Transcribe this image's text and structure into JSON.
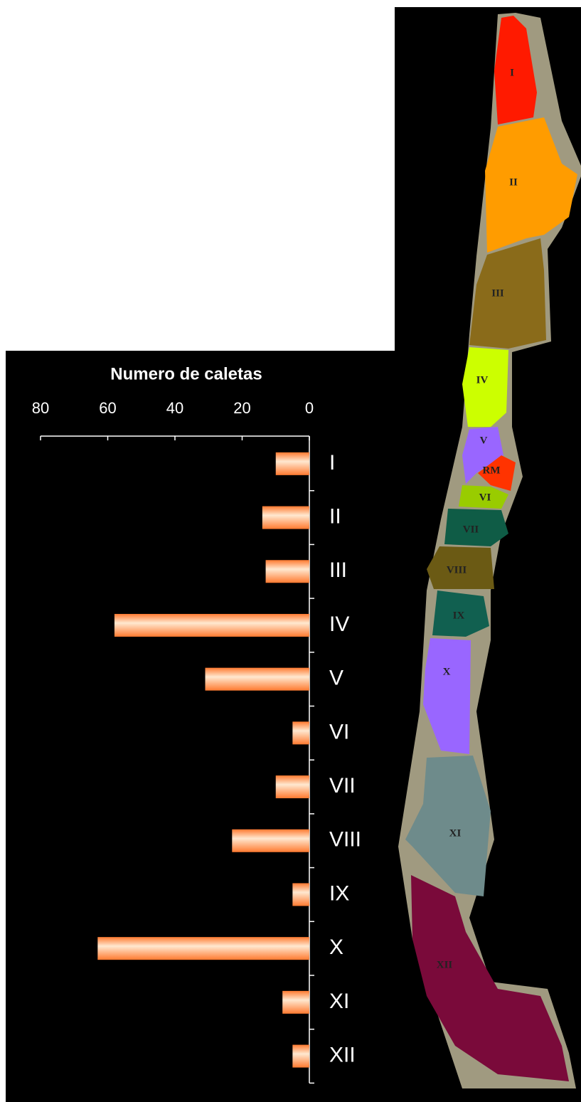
{
  "chart_data": {
    "type": "bar",
    "orientation": "horizontal",
    "title": "Numero de caletas",
    "categories": [
      "I",
      "II",
      "III",
      "IV",
      "V",
      "VI",
      "VII",
      "VIII",
      "IX",
      "X",
      "XI",
      "XII"
    ],
    "values": [
      10,
      14,
      13,
      58,
      31,
      5,
      10,
      23,
      5,
      63,
      8,
      5
    ],
    "color": "#ff8c4a",
    "xlim": [
      0,
      80
    ],
    "xticks": [
      80,
      60,
      40,
      20,
      0
    ],
    "x_reversed": true
  },
  "map": {
    "regions": [
      "I",
      "II",
      "III",
      "IV",
      "V",
      "RM",
      "VI",
      "VII",
      "VIII",
      "IX",
      "X",
      "XI",
      "XII"
    ]
  }
}
